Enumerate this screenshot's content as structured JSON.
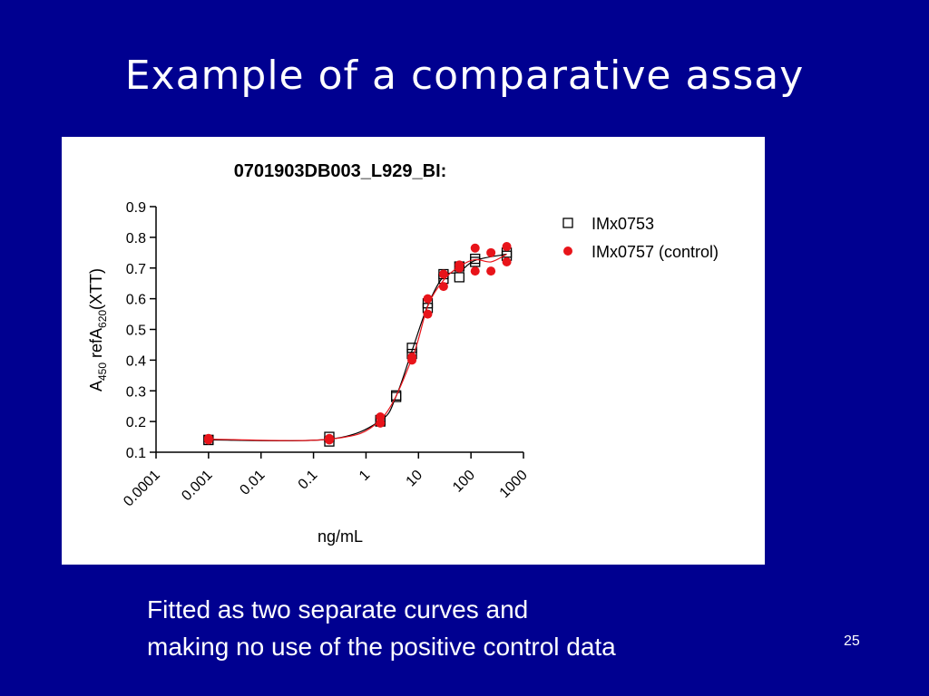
{
  "slide_title": "Example of a comparative assay",
  "chart_data": {
    "type": "scatter",
    "title": "0701903DB003_L929_BI:",
    "xlabel": "ng/mL",
    "ylabel": [
      "A",
      "450",
      " refA",
      "620",
      "(XTT)"
    ],
    "xlog": true,
    "xlim": [
      0.0001,
      1000
    ],
    "xticks": [
      0.0001,
      0.001,
      0.01,
      0.1,
      1,
      10,
      100,
      1000
    ],
    "ylim": [
      0.1,
      0.9
    ],
    "yticks": [
      0.1,
      0.2,
      0.3,
      0.4,
      0.5,
      0.6,
      0.7,
      0.8,
      0.9
    ],
    "legend": "top-right",
    "series": [
      {
        "name": "IMx0753",
        "color": "#000000",
        "marker": "square",
        "x": [
          0.001,
          0.001,
          0.2,
          0.2,
          1.875,
          1.875,
          3.75,
          3.75,
          7.5,
          7.5,
          15,
          15,
          30,
          30,
          60,
          60,
          120,
          120,
          480,
          480
        ],
        "values": [
          0.14,
          0.14,
          0.135,
          0.15,
          0.2,
          0.205,
          0.285,
          0.28,
          0.42,
          0.44,
          0.57,
          0.585,
          0.68,
          0.665,
          0.705,
          0.67,
          0.73,
          0.72,
          0.75,
          0.74
        ]
      },
      {
        "name": "IMx0757 (control)",
        "color": "#e8141a",
        "marker": "circle",
        "x": [
          0.001,
          0.001,
          0.2,
          0.2,
          1.875,
          1.875,
          7.5,
          7.5,
          15,
          15,
          30,
          30,
          60,
          60,
          120,
          120,
          240,
          240,
          480,
          480
        ],
        "values": [
          0.14,
          0.145,
          0.145,
          0.14,
          0.215,
          0.195,
          0.4,
          0.41,
          0.55,
          0.6,
          0.64,
          0.68,
          0.7,
          0.71,
          0.765,
          0.69,
          0.75,
          0.69,
          0.77,
          0.72
        ]
      }
    ]
  },
  "caption": [
    "Fitted as two separate curves and",
    "making no use of the positive control data"
  ],
  "page_number": "25"
}
